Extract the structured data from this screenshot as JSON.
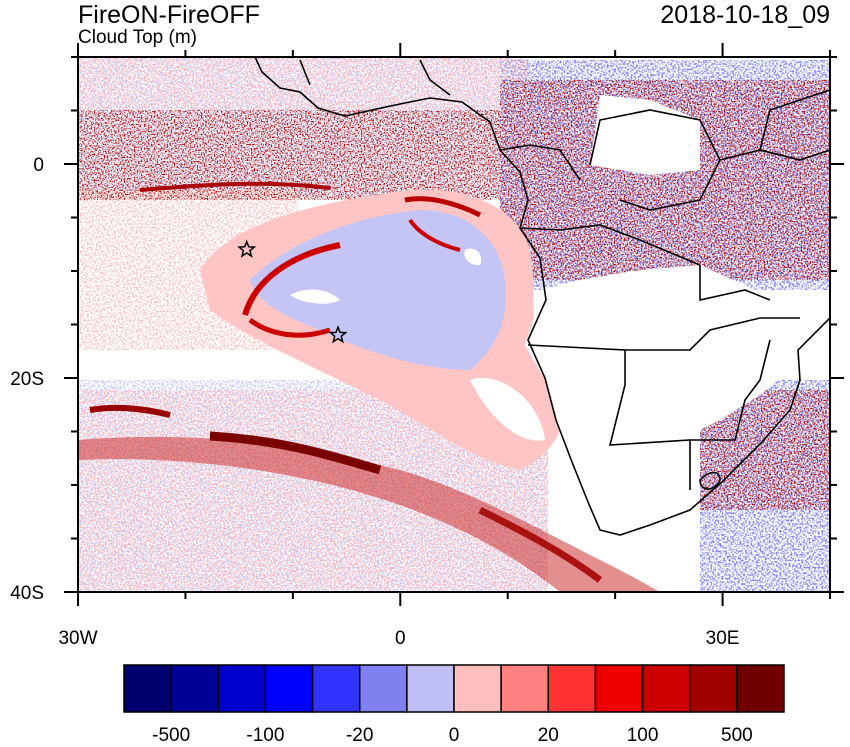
{
  "title": "FireON-FireOFF",
  "subtitle": "Cloud Top (m)",
  "datetime": "2018-10-18_09",
  "lon_ticks": [
    {
      "value": -30,
      "label": "30W"
    },
    {
      "value": 0,
      "label": "0"
    },
    {
      "value": 30,
      "label": "30E"
    }
  ],
  "lat_ticks": [
    {
      "value": 0,
      "label": "0"
    },
    {
      "value": -20,
      "label": "20S"
    },
    {
      "value": -40,
      "label": "40S"
    }
  ],
  "colorbar": {
    "colors": [
      "#00006e",
      "#000099",
      "#0000cc",
      "#0000ff",
      "#3333ff",
      "#8080f0",
      "#bfbff5",
      "#ffbfbf",
      "#ff8080",
      "#ff3333",
      "#ee0000",
      "#cc0000",
      "#a00000",
      "#700000"
    ],
    "labels": [
      "-500",
      "-100",
      "-20",
      "0",
      "20",
      "100",
      "500"
    ]
  },
  "markers": [
    {
      "name": "star-west",
      "lon": -14.3,
      "lat": -8.0
    },
    {
      "name": "star-center",
      "lon": -5.8,
      "lat": -16.0
    }
  ]
}
